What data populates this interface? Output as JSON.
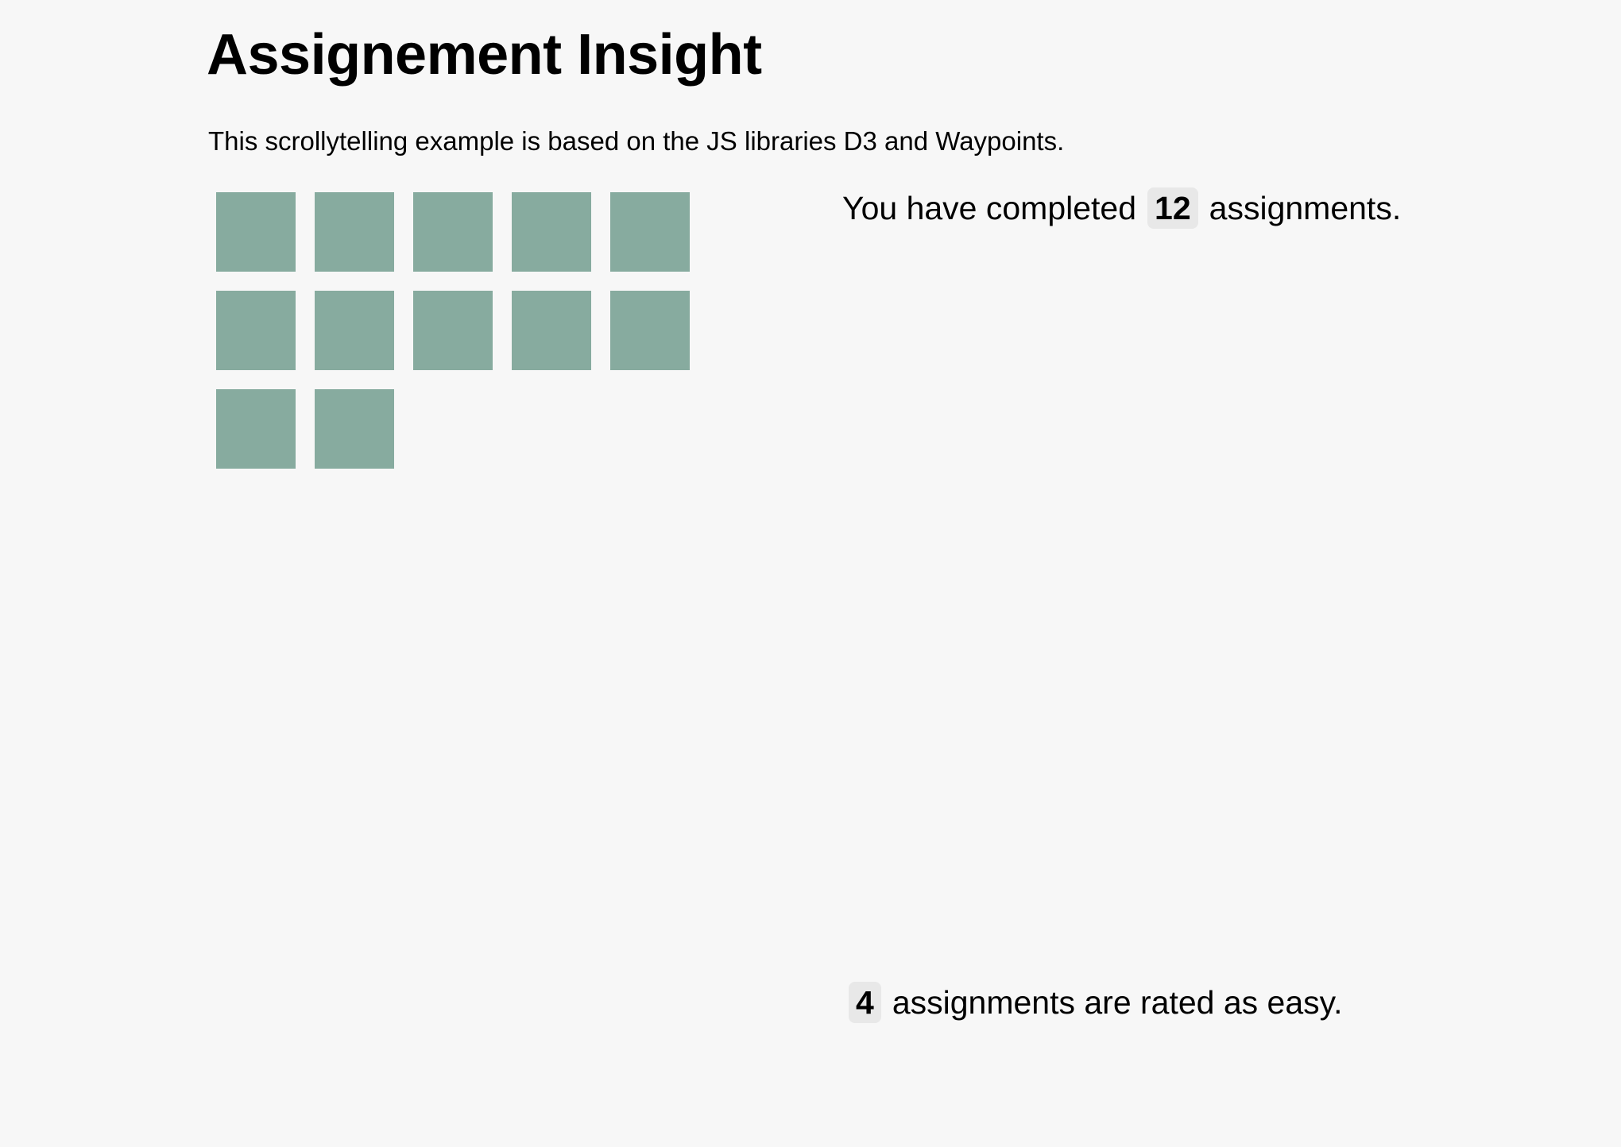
{
  "header": {
    "title": "Assignement Insight",
    "subtitle": "This scrollytelling example is based on the JS libraries D3 and Waypoints."
  },
  "completed": {
    "prefix": "You have completed",
    "count": "12",
    "suffix": "assignments."
  },
  "easy": {
    "count": "4",
    "suffix": "assignments are rated as easy."
  },
  "grid": {
    "count": 12,
    "columns": 5,
    "color": "#87ab9f"
  }
}
